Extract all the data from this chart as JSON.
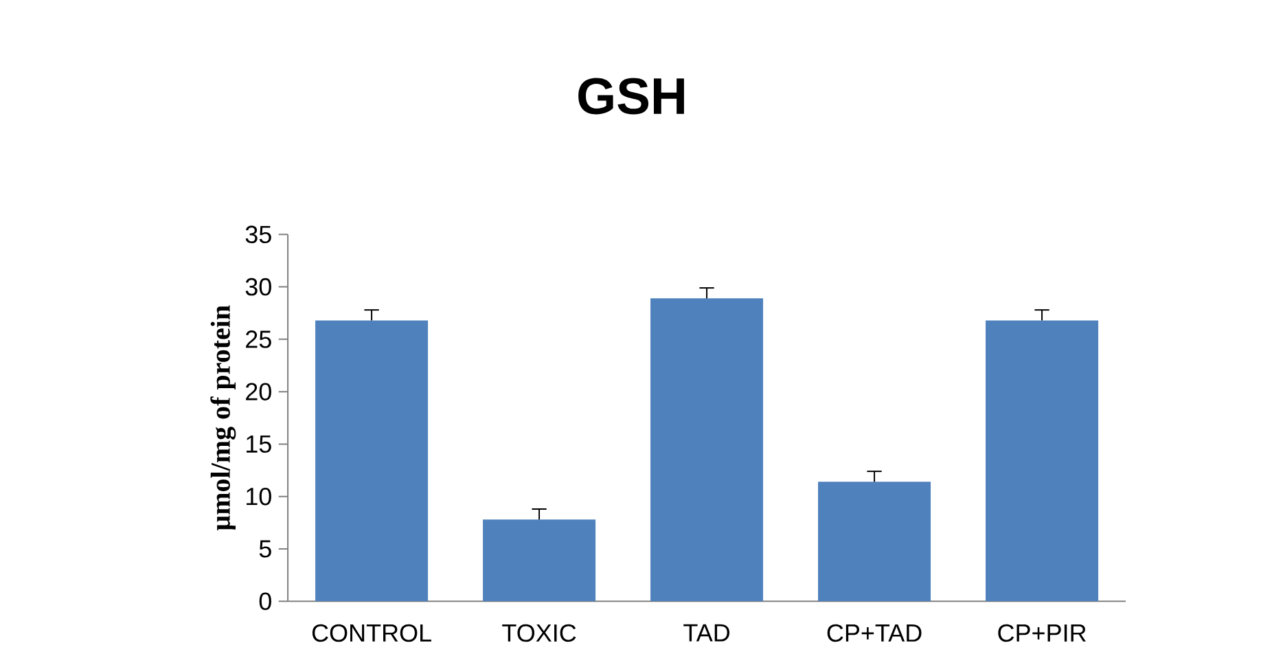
{
  "chart_data": {
    "type": "bar",
    "title": "GSH",
    "ylabel": "µmol/mg of protein",
    "categories": [
      "CONTROL",
      "TOXIC",
      "TAD",
      "CP+TAD",
      "CP+PIR"
    ],
    "values": [
      26.8,
      7.8,
      28.9,
      11.4,
      26.8
    ],
    "errors": [
      [
        26.8,
        27.8
      ],
      [
        7.8,
        8.8
      ],
      [
        28.9,
        29.9
      ],
      [
        11.4,
        12.4
      ],
      [
        26.8,
        27.8
      ]
    ],
    "color": "#4f81bd",
    "ylim": [
      0,
      35
    ],
    "yticks": [
      0,
      5,
      10,
      15,
      20,
      25,
      30,
      35
    ],
    "grid": false
  }
}
